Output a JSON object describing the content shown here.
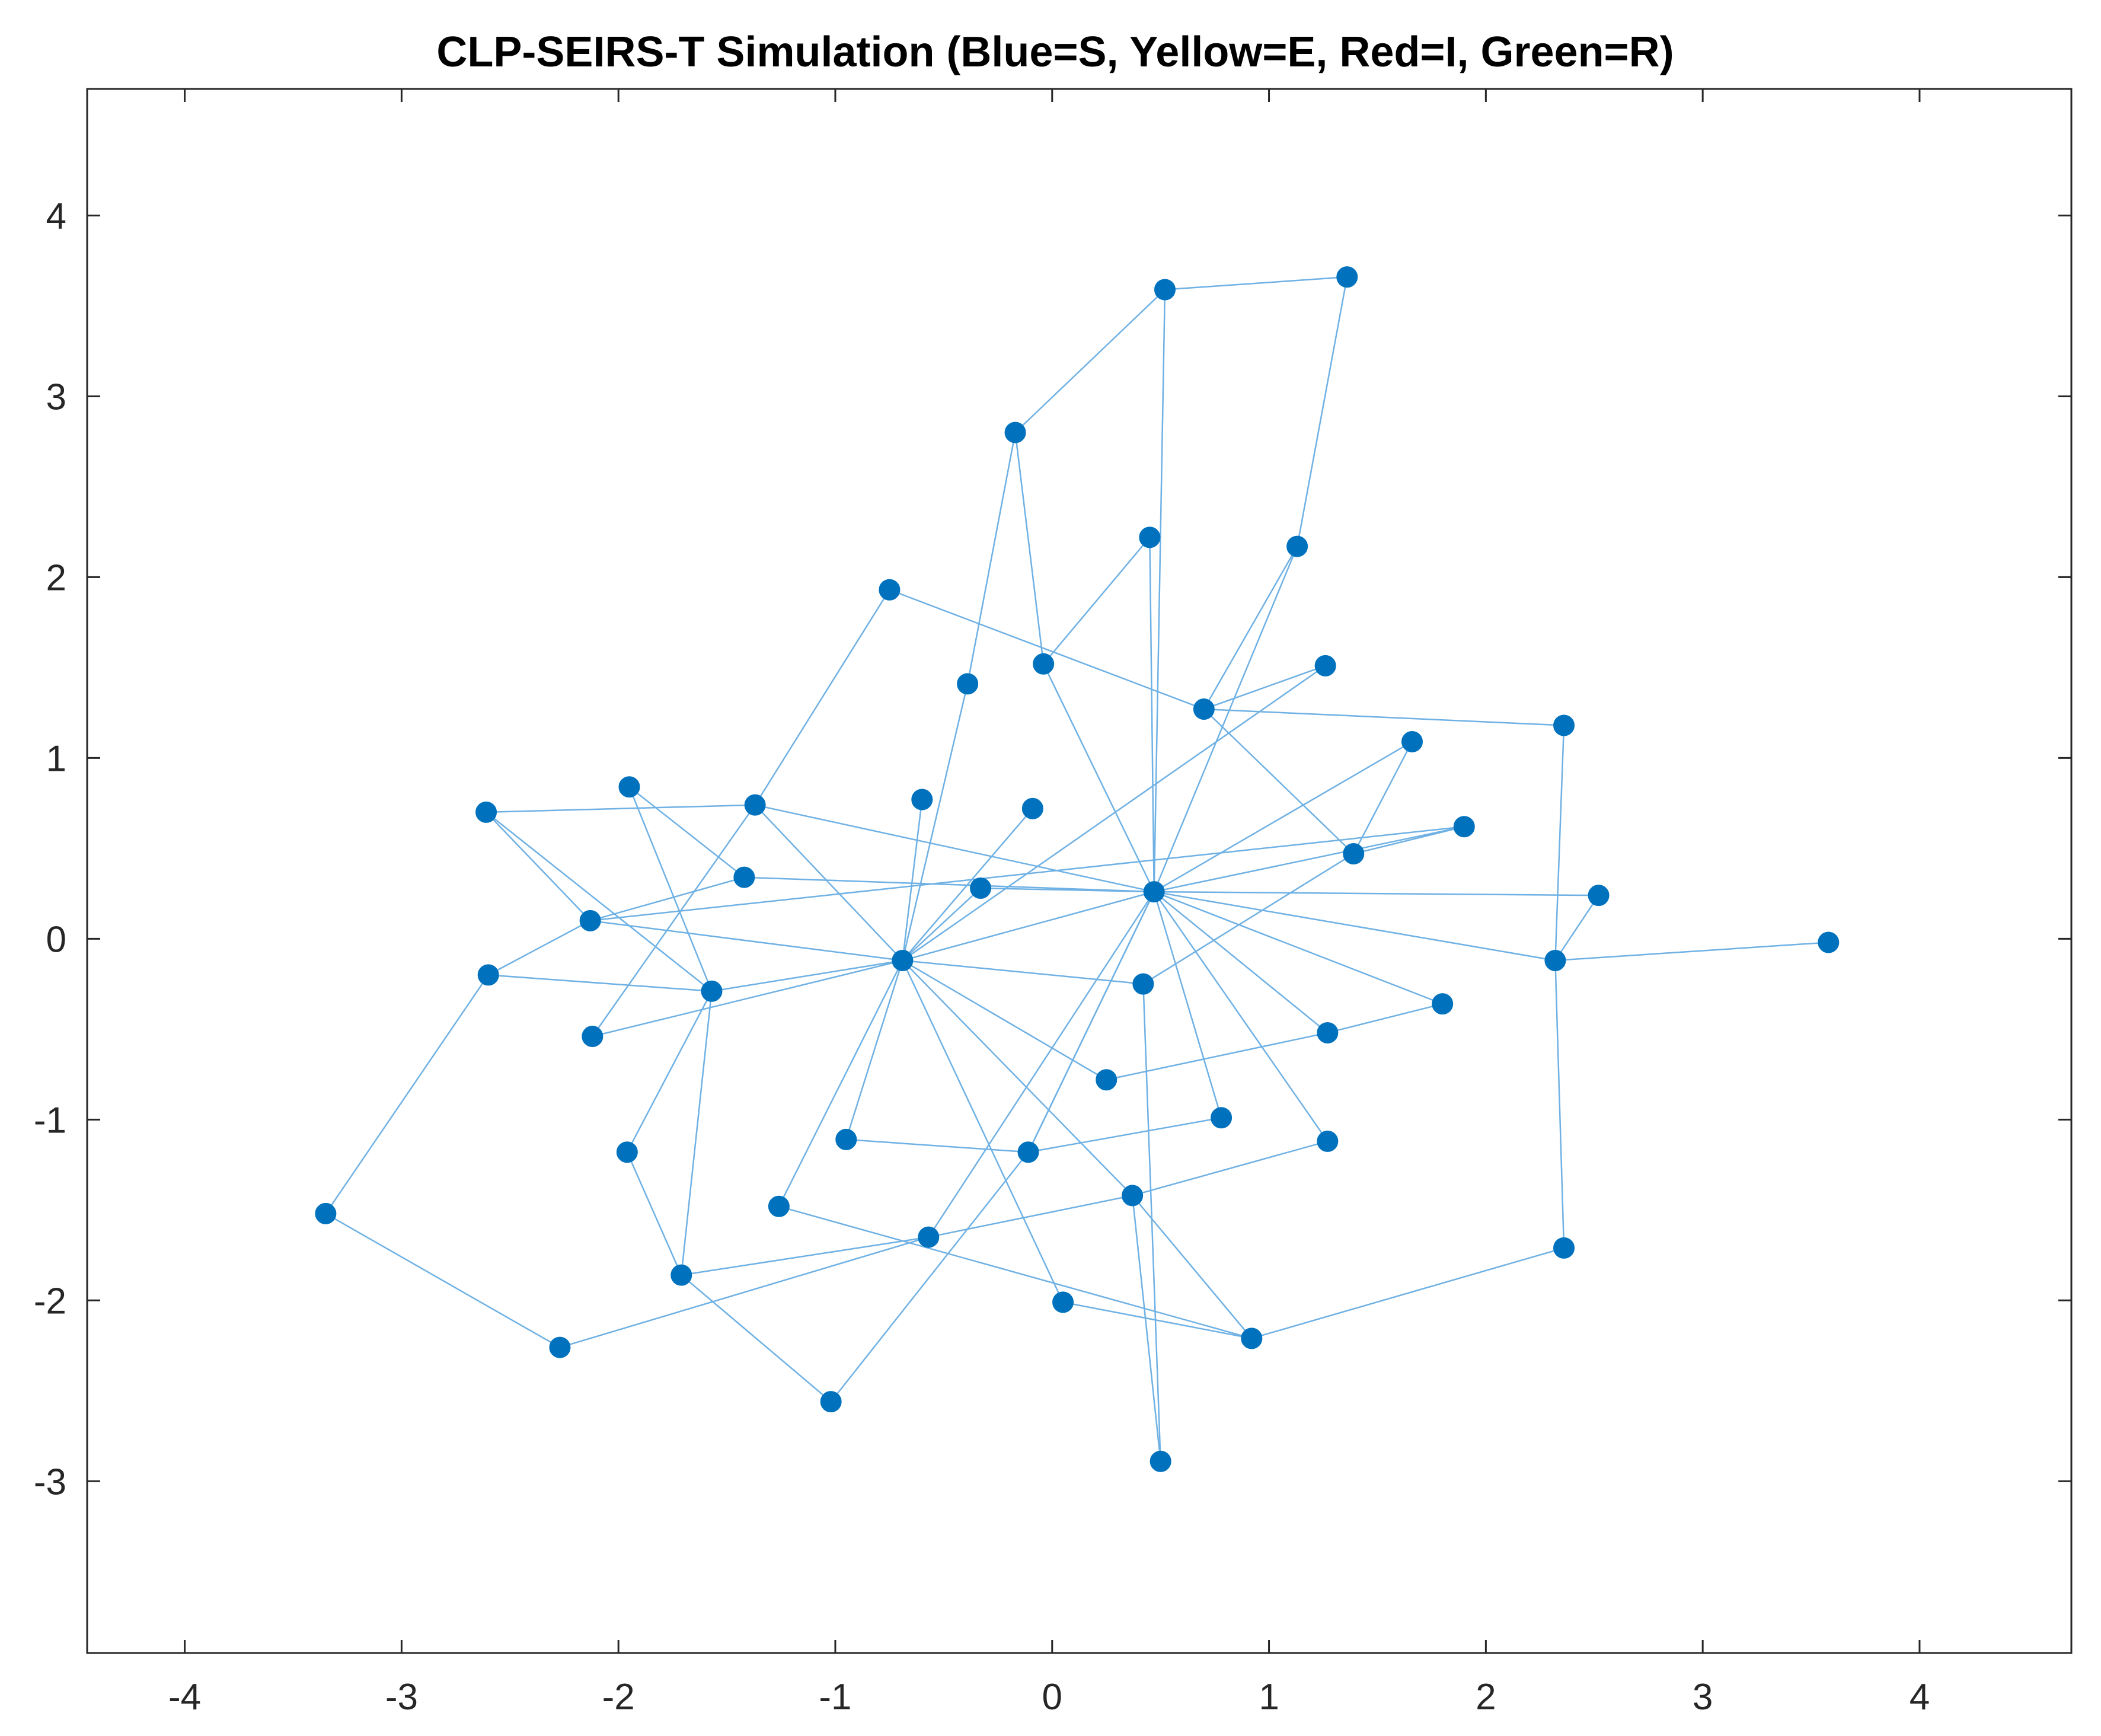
{
  "chart_data": {
    "type": "scatter",
    "subtype": "network-graph",
    "title": "CLP-SEIRS-T Simulation (Blue=S, Yellow=E, Red=I, Green=R)",
    "xlabel": "",
    "ylabel": "",
    "xlim": [
      -4.45,
      4.7
    ],
    "ylim": [
      -3.95,
      4.7
    ],
    "xticks": [
      -4,
      -3,
      -2,
      -1,
      0,
      1,
      2,
      3,
      4
    ],
    "yticks": [
      -3,
      -2,
      -1,
      0,
      1,
      2,
      3,
      4
    ],
    "xtick_labels": [
      "-4",
      "-3",
      "-2",
      "-1",
      "0",
      "1",
      "2",
      "3",
      "4"
    ],
    "ytick_labels": [
      "-3",
      "-2",
      "-1",
      "0",
      "1",
      "2",
      "3",
      "4"
    ],
    "grid": false,
    "colors": {
      "node": "#0072bd",
      "edge": "#6fb1e4",
      "axes": "#262626"
    },
    "nodes": [
      {
        "x": 0.52,
        "y": 3.59
      },
      {
        "x": 1.36,
        "y": 3.66
      },
      {
        "x": -0.17,
        "y": 2.8
      },
      {
        "x": 0.45,
        "y": 2.22
      },
      {
        "x": 1.13,
        "y": 2.17
      },
      {
        "x": -0.75,
        "y": 1.93
      },
      {
        "x": -0.39,
        "y": 1.41
      },
      {
        "x": -0.04,
        "y": 1.52
      },
      {
        "x": 1.26,
        "y": 1.51
      },
      {
        "x": 0.7,
        "y": 1.27
      },
      {
        "x": 2.36,
        "y": 1.18
      },
      {
        "x": 1.66,
        "y": 1.09
      },
      {
        "x": -2.61,
        "y": 0.7
      },
      {
        "x": -1.95,
        "y": 0.84
      },
      {
        "x": -1.37,
        "y": 0.74
      },
      {
        "x": -0.6,
        "y": 0.77
      },
      {
        "x": -0.09,
        "y": 0.72
      },
      {
        "x": 1.9,
        "y": 0.62
      },
      {
        "x": 1.39,
        "y": 0.47
      },
      {
        "x": -1.42,
        "y": 0.34
      },
      {
        "x": -0.33,
        "y": 0.28
      },
      {
        "x": 0.47,
        "y": 0.26
      },
      {
        "x": 2.52,
        "y": 0.24
      },
      {
        "x": -2.13,
        "y": 0.1
      },
      {
        "x": 3.58,
        "y": -0.02
      },
      {
        "x": -0.69,
        "y": -0.12
      },
      {
        "x": 2.32,
        "y": -0.12
      },
      {
        "x": -2.6,
        "y": -0.2
      },
      {
        "x": -1.57,
        "y": -0.29
      },
      {
        "x": 0.42,
        "y": -0.25
      },
      {
        "x": 1.8,
        "y": -0.36
      },
      {
        "x": -2.12,
        "y": -0.54
      },
      {
        "x": 1.27,
        "y": -0.52
      },
      {
        "x": 0.25,
        "y": -0.78
      },
      {
        "x": 0.78,
        "y": -0.99
      },
      {
        "x": -0.95,
        "y": -1.11
      },
      {
        "x": -0.11,
        "y": -1.18
      },
      {
        "x": 1.27,
        "y": -1.12
      },
      {
        "x": -1.96,
        "y": -1.18
      },
      {
        "x": -1.26,
        "y": -1.48
      },
      {
        "x": 0.37,
        "y": -1.42
      },
      {
        "x": -0.57,
        "y": -1.65
      },
      {
        "x": -3.35,
        "y": -1.52
      },
      {
        "x": -1.71,
        "y": -1.86
      },
      {
        "x": 2.36,
        "y": -1.71
      },
      {
        "x": 0.05,
        "y": -2.01
      },
      {
        "x": 0.92,
        "y": -2.21
      },
      {
        "x": -2.27,
        "y": -2.26
      },
      {
        "x": -1.02,
        "y": -2.56
      },
      {
        "x": 0.5,
        "y": -2.89
      }
    ],
    "edges": [
      [
        0,
        1
      ],
      [
        0,
        2
      ],
      [
        0,
        21
      ],
      [
        1,
        4
      ],
      [
        2,
        6
      ],
      [
        2,
        7
      ],
      [
        3,
        7
      ],
      [
        3,
        21
      ],
      [
        4,
        9
      ],
      [
        4,
        21
      ],
      [
        5,
        14
      ],
      [
        5,
        9
      ],
      [
        6,
        25
      ],
      [
        7,
        21
      ],
      [
        8,
        9
      ],
      [
        8,
        25
      ],
      [
        9,
        10
      ],
      [
        9,
        18
      ],
      [
        10,
        26
      ],
      [
        11,
        18
      ],
      [
        11,
        21
      ],
      [
        12,
        14
      ],
      [
        12,
        28
      ],
      [
        13,
        19
      ],
      [
        13,
        28
      ],
      [
        14,
        21
      ],
      [
        14,
        25
      ],
      [
        15,
        25
      ],
      [
        16,
        25
      ],
      [
        17,
        21
      ],
      [
        17,
        18
      ],
      [
        18,
        29
      ],
      [
        19,
        21
      ],
      [
        20,
        21
      ],
      [
        20,
        25
      ],
      [
        21,
        22
      ],
      [
        21,
        26
      ],
      [
        21,
        30
      ],
      [
        21,
        32
      ],
      [
        21,
        34
      ],
      [
        21,
        37
      ],
      [
        21,
        25
      ],
      [
        21,
        36
      ],
      [
        21,
        41
      ],
      [
        22,
        26
      ],
      [
        23,
        25
      ],
      [
        23,
        27
      ],
      [
        24,
        26
      ],
      [
        25,
        28
      ],
      [
        25,
        29
      ],
      [
        25,
        31
      ],
      [
        25,
        33
      ],
      [
        25,
        35
      ],
      [
        25,
        39
      ],
      [
        25,
        40
      ],
      [
        25,
        45
      ],
      [
        27,
        28
      ],
      [
        27,
        42
      ],
      [
        28,
        43
      ],
      [
        30,
        32
      ],
      [
        32,
        33
      ],
      [
        34,
        36
      ],
      [
        35,
        36
      ],
      [
        36,
        48
      ],
      [
        37,
        40
      ],
      [
        38,
        43
      ],
      [
        39,
        46
      ],
      [
        40,
        41
      ],
      [
        40,
        46
      ],
      [
        40,
        49
      ],
      [
        41,
        47
      ],
      [
        41,
        43
      ],
      [
        42,
        47
      ],
      [
        43,
        48
      ],
      [
        44,
        46
      ],
      [
        45,
        46
      ],
      [
        26,
        44
      ],
      [
        28,
        38
      ],
      [
        19,
        23
      ],
      [
        12,
        23
      ],
      [
        17,
        23
      ],
      [
        29,
        49
      ],
      [
        14,
        31
      ],
      [
        36,
        21
      ]
    ]
  }
}
